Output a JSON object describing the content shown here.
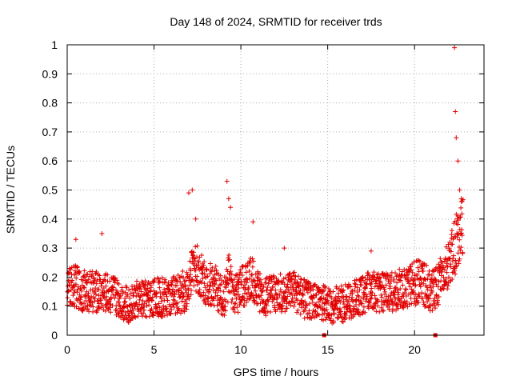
{
  "chart_data": {
    "type": "scatter",
    "title": "Day 148 of 2024, SRMTID for receiver trds",
    "xlabel": "GPS time / hours",
    "ylabel": "SRMTID / TECUs",
    "xlim": [
      0,
      24
    ],
    "ylim": [
      0,
      1
    ],
    "x_ticks": [
      0,
      5,
      10,
      15,
      20
    ],
    "y_ticks": [
      0,
      0.1,
      0.2,
      0.3,
      0.4,
      0.5,
      0.6,
      0.7,
      0.8,
      0.9,
      1
    ],
    "x_tick_labels": [
      "0",
      "5",
      "10",
      "15",
      "20"
    ],
    "y_tick_labels": [
      "0",
      "0.1",
      "0.2",
      "0.3",
      "0.4",
      "0.5",
      "0.6",
      "0.7",
      "0.8",
      "0.9",
      "1"
    ],
    "grid": true,
    "marker": "+",
    "point_color": "#e00000",
    "baseline_markers_x": [
      14.8,
      21.2
    ],
    "series": [
      {
        "name": "SRMTID",
        "shape_description": "dense scatter ~0.05-0.25 TECU with bursts near 7h, 9.3h, 10.7h and a late rise after 21.5h peaking near 1.0 at 22.4h",
        "envelope_hours": [
          0,
          0.5,
          1,
          2,
          2.8,
          3.5,
          4,
          5,
          6,
          7,
          7.3,
          8,
          8.5,
          9,
          9.3,
          9.6,
          10,
          10.7,
          11.2,
          12,
          13,
          13.8,
          14.7,
          15,
          16,
          17,
          17.5,
          18.5,
          19.5,
          20.3,
          21,
          21.5,
          22,
          22.4,
          22.8
        ],
        "envelope_mean": [
          0.16,
          0.17,
          0.15,
          0.15,
          0.14,
          0.1,
          0.12,
          0.13,
          0.13,
          0.16,
          0.25,
          0.18,
          0.17,
          0.12,
          0.2,
          0.13,
          0.16,
          0.2,
          0.13,
          0.14,
          0.15,
          0.12,
          0.11,
          0.1,
          0.11,
          0.14,
          0.15,
          0.15,
          0.16,
          0.19,
          0.15,
          0.19,
          0.24,
          0.32,
          0.4
        ],
        "spikes": [
          {
            "x": 0.5,
            "y": 0.33
          },
          {
            "x": 2.0,
            "y": 0.35
          },
          {
            "x": 7.0,
            "y": 0.49
          },
          {
            "x": 7.2,
            "y": 0.5
          },
          {
            "x": 7.4,
            "y": 0.4
          },
          {
            "x": 9.2,
            "y": 0.53
          },
          {
            "x": 9.3,
            "y": 0.47
          },
          {
            "x": 9.4,
            "y": 0.44
          },
          {
            "x": 10.7,
            "y": 0.39
          },
          {
            "x": 12.5,
            "y": 0.3
          },
          {
            "x": 17.5,
            "y": 0.29
          },
          {
            "x": 22.3,
            "y": 0.99
          },
          {
            "x": 22.35,
            "y": 0.77
          },
          {
            "x": 22.4,
            "y": 0.68
          },
          {
            "x": 22.5,
            "y": 0.6
          },
          {
            "x": 22.6,
            "y": 0.5
          },
          {
            "x": 22.7,
            "y": 0.46
          }
        ]
      }
    ]
  }
}
